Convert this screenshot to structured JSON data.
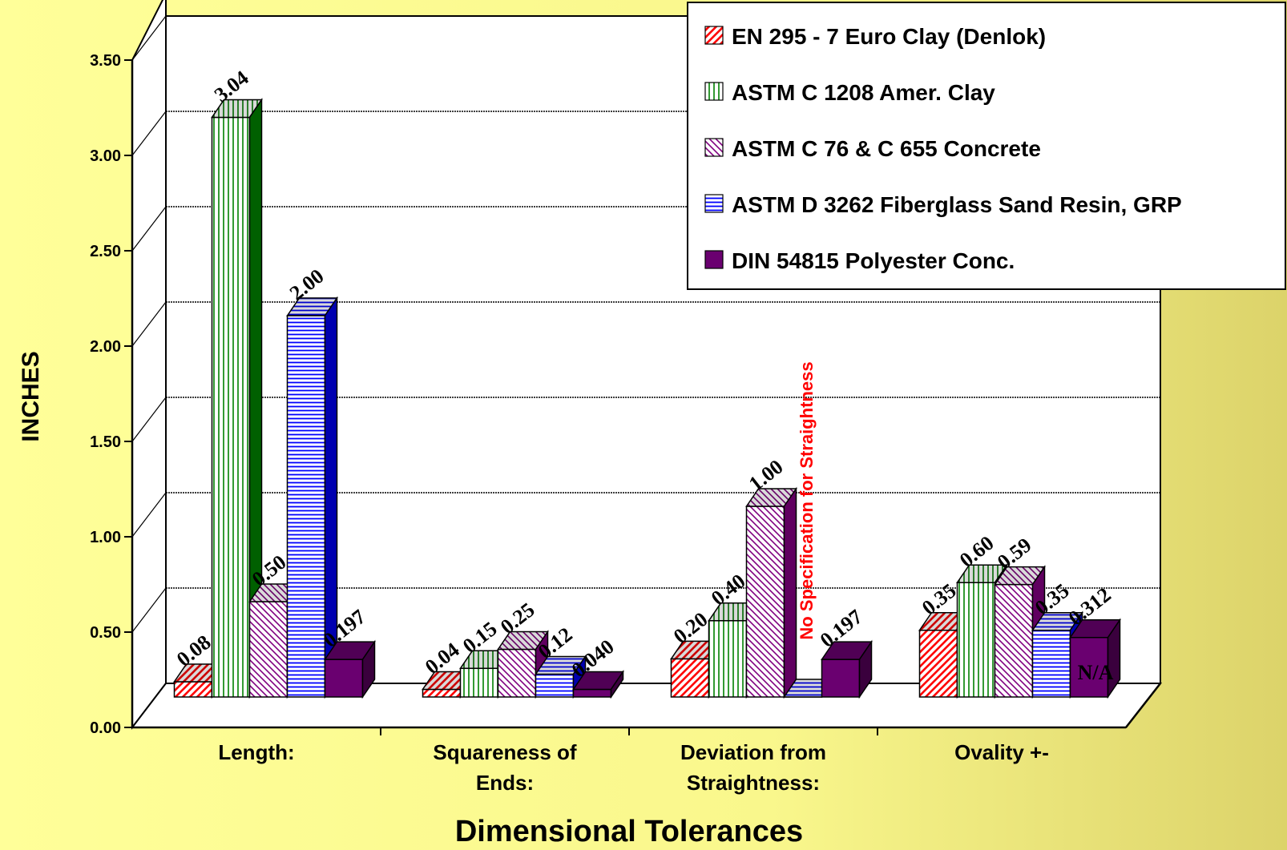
{
  "chart_data": {
    "type": "bar",
    "xlabel": "Dimensional Tolerances",
    "ylabel": "INCHES",
    "ylim": [
      0,
      3.5
    ],
    "yticks": [
      "0.00",
      "0.50",
      "1.00",
      "1.50",
      "2.00",
      "2.50",
      "3.00",
      "3.50"
    ],
    "grid": true,
    "legend_position": "top-right",
    "categories": [
      [
        "Length:"
      ],
      [
        "Squareness of",
        "Ends:"
      ],
      [
        "Deviation from",
        "Straightness:"
      ],
      [
        "Ovality +-"
      ]
    ],
    "series": [
      {
        "name": "EN 295 - 7  Euro Clay (Denlok)",
        "color": "#ff0000",
        "pattern": "diag-up",
        "values": [
          0.08,
          0.04,
          0.2,
          0.35
        ],
        "labels": [
          "0.08",
          "0.04",
          "0.20",
          "0.35"
        ]
      },
      {
        "name": "ASTM C 1208  Amer. Clay",
        "color": "#008000",
        "pattern": "vertical",
        "values": [
          3.04,
          0.15,
          0.4,
          0.6
        ],
        "labels": [
          "3.04",
          "0.15",
          "0.40",
          "0.60"
        ]
      },
      {
        "name": "ASTM C 76 & C 655  Concrete",
        "color": "#800080",
        "pattern": "diag-down",
        "values": [
          0.5,
          0.25,
          1.0,
          0.59
        ],
        "labels": [
          "0.50",
          "0.25",
          "1.00",
          "0.59"
        ]
      },
      {
        "name": "ASTM D 3262  Fiberglass Sand Resin, GRP",
        "color": "#0000ff",
        "pattern": "horizontal",
        "values": [
          2.0,
          0.12,
          0,
          0.35
        ],
        "labels": [
          "2.00",
          "0.12",
          "",
          "0.35"
        ]
      },
      {
        "name": "DIN 54815 Polyester Conc.",
        "color": "#660066",
        "pattern": "solid",
        "values": [
          0.197,
          0.04,
          0.197,
          0.312
        ],
        "labels": [
          "0.197",
          "0.040",
          "0.197",
          "0.312"
        ]
      }
    ],
    "annotations": [
      {
        "text": "No Specification for Straightness",
        "category": 2,
        "series": 3,
        "color": "#ff0000"
      },
      {
        "text": "N/A",
        "category": 3,
        "series": 4
      }
    ]
  }
}
